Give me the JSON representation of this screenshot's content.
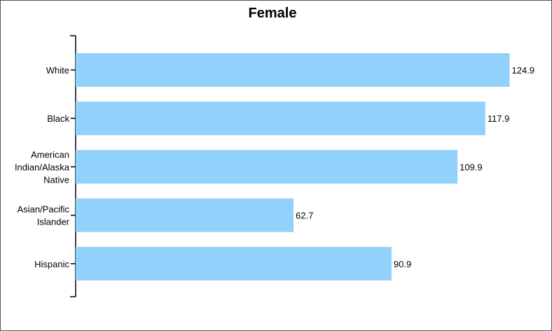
{
  "chart_data": {
    "type": "bar",
    "orientation": "horizontal",
    "title": "Female",
    "categories": [
      "White",
      "Black",
      "American Indian/Alaska Native",
      "Asian/Pacific Islander",
      "Hispanic"
    ],
    "category_lines": [
      [
        "White"
      ],
      [
        "Black"
      ],
      [
        "American",
        "Indian/Alaska",
        "Native"
      ],
      [
        "Asian/Pacific",
        "Islander"
      ],
      [
        "Hispanic"
      ]
    ],
    "values": [
      124.9,
      117.9,
      109.9,
      62.7,
      90.9
    ],
    "value_labels": [
      "124.9",
      "117.9",
      "109.9",
      "62.7",
      "90.9"
    ],
    "xlim": [
      0,
      125
    ],
    "bar_color": "#91d1fc",
    "axis_color": "#000000",
    "grid": false,
    "legend": "none"
  }
}
